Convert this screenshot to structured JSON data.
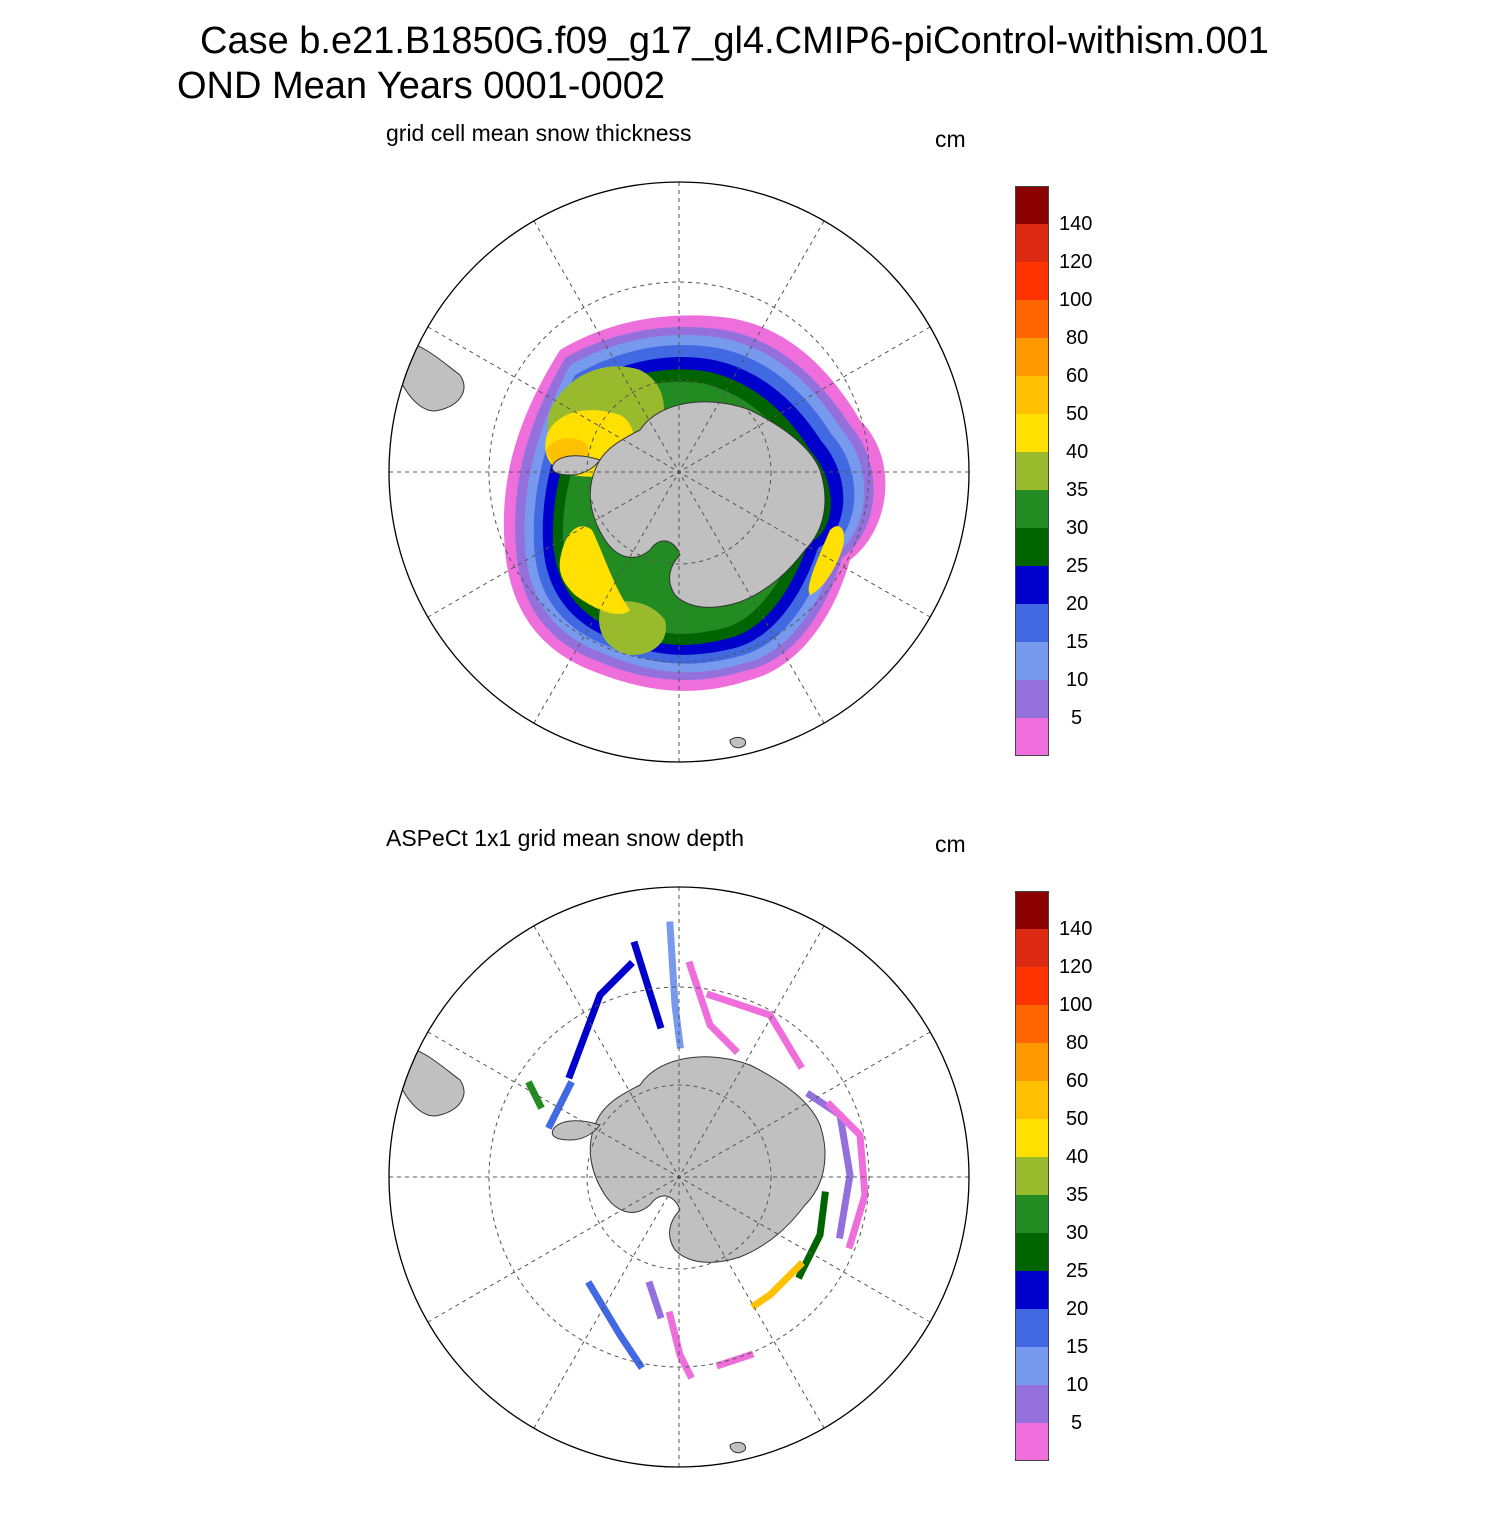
{
  "header": {
    "title": "Case b.e21.B1850G.f09_g17_gl4.CMIP6-piControl-withism.001",
    "subtitle": "OND Mean   Years 0001-0002"
  },
  "panels": [
    {
      "id": "top",
      "title": "grid cell mean snow thickness",
      "unit": "cm"
    },
    {
      "id": "bottom",
      "title": "ASPeCt 1x1 grid mean snow depth",
      "unit": "cm"
    }
  ],
  "colorbar": {
    "levels": [
      "140",
      "120",
      "100",
      "80",
      "60",
      "50",
      "40",
      "35",
      "30",
      "25",
      "20",
      "15",
      "10",
      "5"
    ],
    "colors": [
      "#8b0000",
      "#dd2a13",
      "#ff3300",
      "#ff6600",
      "#ff9900",
      "#ffc000",
      "#ffe000",
      "#9aba2e",
      "#228b22",
      "#006400",
      "#0000cd",
      "#4169e1",
      "#7799ee",
      "#9370db",
      "#ee6fdc"
    ]
  },
  "map_style": {
    "land_color": "#c0c0c0",
    "coast_color": "#333333",
    "grid_style": "dashed"
  }
}
